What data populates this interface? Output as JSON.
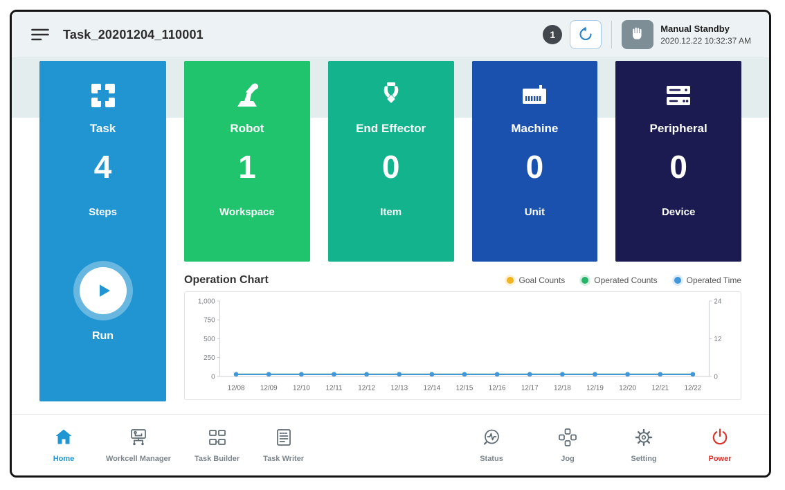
{
  "header": {
    "title": "Task_20201204_110001",
    "badge_count": "1",
    "mode": "Manual Standby",
    "timestamp": "2020.12.22 10:32:37 AM"
  },
  "icons": {
    "menu": "hamburger-icon",
    "reset": "rotate-ccw-icon",
    "manual_mode": "hand-icon",
    "task": "grid-squares-icon",
    "robot": "robot-arm-icon",
    "end_effector": "gripper-icon",
    "machine": "machine-icon",
    "peripheral": "server-stack-icon",
    "run": "play-icon"
  },
  "task_card": {
    "title": "Task",
    "count": "4",
    "unit": "Steps",
    "run_label": "Run",
    "color": "#2095d2"
  },
  "cards": [
    {
      "title": "Robot",
      "count": "1",
      "unit": "Workspace",
      "color": "#1fc46c"
    },
    {
      "title": "End Effector",
      "count": "0",
      "unit": "Item",
      "color": "#12b38d"
    },
    {
      "title": "Machine",
      "count": "0",
      "unit": "Unit",
      "color": "#1a51ae"
    },
    {
      "title": "Peripheral",
      "count": "0",
      "unit": "Device",
      "color": "#1b1b52"
    }
  ],
  "chart_data": {
    "type": "line",
    "title": "Operation Chart",
    "x": [
      "12/08",
      "12/09",
      "12/10",
      "12/11",
      "12/12",
      "12/13",
      "12/14",
      "12/15",
      "12/16",
      "12/17",
      "12/18",
      "12/19",
      "12/20",
      "12/21",
      "12/22"
    ],
    "left_axis": {
      "range": [
        0,
        1000
      ],
      "tick_labels": [
        "1,000",
        "750",
        "500",
        "250",
        "0"
      ]
    },
    "right_axis": {
      "range": [
        0,
        24
      ],
      "tick_labels": [
        "24",
        "12",
        "0"
      ]
    },
    "legend_position": "top-right",
    "grid": false,
    "series": [
      {
        "name": "Goal Counts",
        "color": "#f0b41c",
        "axis": "left",
        "values": [
          0,
          0,
          0,
          0,
          0,
          0,
          0,
          0,
          0,
          0,
          0,
          0,
          0,
          0,
          0
        ]
      },
      {
        "name": "Operated Counts",
        "color": "#27b46a",
        "axis": "left",
        "values": [
          0,
          0,
          0,
          0,
          0,
          0,
          0,
          0,
          0,
          0,
          0,
          0,
          0,
          0,
          0
        ]
      },
      {
        "name": "Operated Time",
        "color": "#4196dc",
        "axis": "right",
        "values": [
          0,
          0,
          0,
          0,
          0,
          0,
          0,
          0,
          0,
          0,
          0,
          0,
          0,
          0,
          0
        ]
      }
    ]
  },
  "nav": {
    "items": [
      {
        "label": "Home",
        "active": true
      },
      {
        "label": "Workcell Manager"
      },
      {
        "label": "Task Builder"
      },
      {
        "label": "Task Writer"
      },
      {
        "label": "Status"
      },
      {
        "label": "Jog"
      },
      {
        "label": "Setting"
      },
      {
        "label": "Power"
      }
    ]
  }
}
